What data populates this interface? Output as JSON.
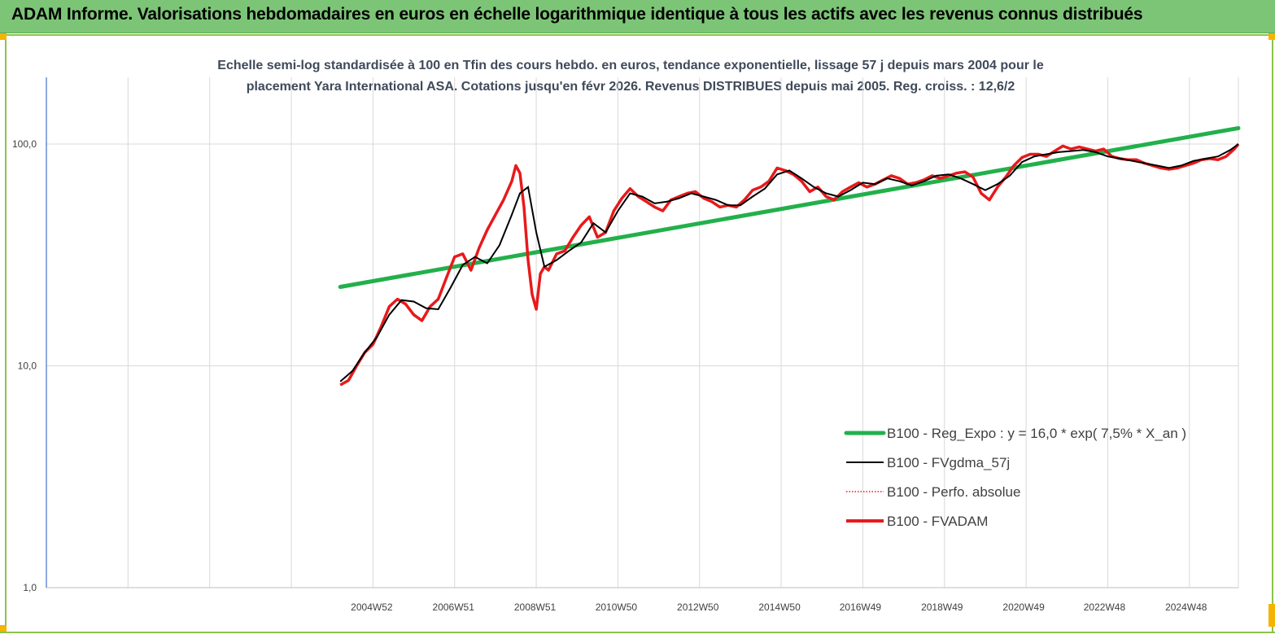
{
  "header": {
    "title": "ADAM Informe. Valorisations hebdomadaires en euros en échelle logarithmique identique à tous les actifs avec les revenus connus distribués"
  },
  "colors": {
    "header_bg": "#7cc576",
    "regression": "#22b04b",
    "fvgdma": "#000000",
    "perfo": "#e8191b",
    "fvadam": "#e8191b"
  },
  "chart_data": {
    "type": "line",
    "subtitle_line1": "Echelle semi-log standardisée à 100 en Tfin des cours hebdo. en euros, tendance exponentielle, lissage 57 j depuis mars 2004 pour le",
    "subtitle_line2": "placement Yara International ASA. Cotations jusqu'en févr 2026. Revenus DISTRIBUES depuis mai 2005. Reg. croiss. : 12,6/2",
    "y_scale": "log",
    "ylim": [
      1,
      200
    ],
    "xlim": [
      1997.0,
      2026.2
    ],
    "y_ticks": [
      {
        "value": 1,
        "label": "1,0"
      },
      {
        "value": 10,
        "label": "10,0"
      },
      {
        "value": 100,
        "label": "100,0"
      }
    ],
    "x_ticks": [
      {
        "value": 2004.97,
        "label": "2004W52"
      },
      {
        "value": 2006.97,
        "label": "2006W51"
      },
      {
        "value": 2008.97,
        "label": "2008W51"
      },
      {
        "value": 2010.96,
        "label": "2010W50"
      },
      {
        "value": 2012.96,
        "label": "2012W50"
      },
      {
        "value": 2014.96,
        "label": "2014W50"
      },
      {
        "value": 2016.94,
        "label": "2016W49"
      },
      {
        "value": 2018.94,
        "label": "2018W49"
      },
      {
        "value": 2020.94,
        "label": "2020W49"
      },
      {
        "value": 2022.92,
        "label": "2022W48"
      },
      {
        "value": 2024.92,
        "label": "2024W48"
      }
    ],
    "x_grid": [
      1997.0,
      1999.0,
      2001.0,
      2003.0,
      2005.0,
      2007.0,
      2009.0,
      2011.0,
      2013.0,
      2015.0,
      2017.0,
      2019.0,
      2021.0,
      2023.0,
      2025.0
    ],
    "grid": true,
    "legend_position": "bottom-right",
    "series": [
      {
        "name": "B100 - Reg_Expo : y = 16,0 *  exp( 7,5% *   X_an )",
        "style": "regression",
        "x": [
          2004.2,
          2026.2
        ],
        "y": [
          22.7,
          118.0
        ]
      },
      {
        "name": "B100 - FVgdma_57j",
        "style": "smooth",
        "x": [
          2004.2,
          2004.5,
          2004.8,
          2005.1,
          2005.4,
          2005.7,
          2006.0,
          2006.3,
          2006.6,
          2006.9,
          2007.2,
          2007.5,
          2007.8,
          2008.1,
          2008.4,
          2008.6,
          2008.8,
          2009.0,
          2009.2,
          2009.5,
          2009.8,
          2010.1,
          2010.4,
          2010.7,
          2011.0,
          2011.3,
          2011.6,
          2011.9,
          2012.2,
          2012.5,
          2012.8,
          2013.1,
          2013.4,
          2013.7,
          2014.0,
          2014.3,
          2014.6,
          2014.9,
          2015.2,
          2015.5,
          2015.8,
          2016.1,
          2016.4,
          2016.7,
          2017.0,
          2017.3,
          2017.6,
          2017.9,
          2018.2,
          2018.5,
          2018.8,
          2019.1,
          2019.4,
          2019.7,
          2020.0,
          2020.3,
          2020.6,
          2020.9,
          2021.2,
          2021.5,
          2021.8,
          2022.1,
          2022.4,
          2022.7,
          2023.0,
          2023.3,
          2023.6,
          2023.9,
          2024.2,
          2024.5,
          2024.8,
          2025.1,
          2025.4,
          2025.7,
          2026.0,
          2026.2
        ],
        "y": [
          8.5,
          9.5,
          11.5,
          13.5,
          17.0,
          19.8,
          19.5,
          18.2,
          18.0,
          22.5,
          28.5,
          31.0,
          29.0,
          35.0,
          48.0,
          60.0,
          64.0,
          40.0,
          28.0,
          30.0,
          33.0,
          36.0,
          44.0,
          40.0,
          50.0,
          60.0,
          58.0,
          54.0,
          55.0,
          57.0,
          60.0,
          58.0,
          56.0,
          53.0,
          53.0,
          58.0,
          63.0,
          73.0,
          76.0,
          70.0,
          64.0,
          60.0,
          58.0,
          62.0,
          67.0,
          66.0,
          70.0,
          68.0,
          65.0,
          68.0,
          72.0,
          73.0,
          70.0,
          66.0,
          62.0,
          66.0,
          72.0,
          83.0,
          88.0,
          90.0,
          92.0,
          93.0,
          94.0,
          92.0,
          88.0,
          86.0,
          84.0,
          82.0,
          80.0,
          78.0,
          80.0,
          84.0,
          86.0,
          88.0,
          94.0,
          100.0
        ]
      },
      {
        "name": "B100 - Perfo. absolue",
        "style": "dotted",
        "x": [],
        "y": []
      },
      {
        "name": "B100 - FVADAM",
        "style": "thick",
        "x": [
          2004.2,
          2004.4,
          2004.6,
          2004.8,
          2005.0,
          2005.2,
          2005.4,
          2005.6,
          2005.8,
          2006.0,
          2006.2,
          2006.4,
          2006.6,
          2006.8,
          2007.0,
          2007.2,
          2007.4,
          2007.6,
          2007.8,
          2008.0,
          2008.2,
          2008.4,
          2008.5,
          2008.6,
          2008.7,
          2008.8,
          2008.9,
          2009.0,
          2009.1,
          2009.2,
          2009.3,
          2009.5,
          2009.7,
          2009.9,
          2010.1,
          2010.3,
          2010.5,
          2010.7,
          2010.9,
          2011.1,
          2011.3,
          2011.5,
          2011.7,
          2011.9,
          2012.1,
          2012.3,
          2012.5,
          2012.7,
          2012.9,
          2013.1,
          2013.3,
          2013.5,
          2013.7,
          2013.9,
          2014.1,
          2014.3,
          2014.5,
          2014.7,
          2014.9,
          2015.1,
          2015.3,
          2015.5,
          2015.7,
          2015.9,
          2016.1,
          2016.3,
          2016.5,
          2016.7,
          2016.9,
          2017.1,
          2017.3,
          2017.5,
          2017.7,
          2017.9,
          2018.1,
          2018.3,
          2018.5,
          2018.7,
          2018.9,
          2019.1,
          2019.3,
          2019.5,
          2019.7,
          2019.9,
          2020.1,
          2020.3,
          2020.5,
          2020.7,
          2020.9,
          2021.1,
          2021.3,
          2021.5,
          2021.7,
          2021.9,
          2022.1,
          2022.3,
          2022.5,
          2022.7,
          2022.9,
          2023.1,
          2023.3,
          2023.5,
          2023.7,
          2023.9,
          2024.1,
          2024.3,
          2024.5,
          2024.7,
          2024.9,
          2025.1,
          2025.3,
          2025.5,
          2025.7,
          2025.9,
          2026.1,
          2026.2
        ],
        "y": [
          8.2,
          8.6,
          10.0,
          11.5,
          12.5,
          15.0,
          18.5,
          20.0,
          19.0,
          17.0,
          16.0,
          18.5,
          20.0,
          25.0,
          31.0,
          32.0,
          27.0,
          34.0,
          41.0,
          48.0,
          56.0,
          68.0,
          80.0,
          74.0,
          52.0,
          30.0,
          21.0,
          18.0,
          26.0,
          28.0,
          27.0,
          32.0,
          33.0,
          38.0,
          43.0,
          47.0,
          38.0,
          40.0,
          50.0,
          57.0,
          63.0,
          58.0,
          55.0,
          52.0,
          50.0,
          56.0,
          58.0,
          60.0,
          61.0,
          57.0,
          55.0,
          52.0,
          53.0,
          52.0,
          56.0,
          62.0,
          64.0,
          68.0,
          78.0,
          76.0,
          73.0,
          68.0,
          61.0,
          64.0,
          58.0,
          56.0,
          61.0,
          64.0,
          67.0,
          64.0,
          66.0,
          69.0,
          72.0,
          70.0,
          66.0,
          67.0,
          69.0,
          72.0,
          70.0,
          72.0,
          74.0,
          75.0,
          71.0,
          60.0,
          56.0,
          64.0,
          71.0,
          80.0,
          87.0,
          90.0,
          90.0,
          88.0,
          93.0,
          98.0,
          95.0,
          97.0,
          95.0,
          93.0,
          95.0,
          88.0,
          86.0,
          85.0,
          85.0,
          82.0,
          80.0,
          78.0,
          77.0,
          78.0,
          80.0,
          82.0,
          85.0,
          86.0,
          85.0,
          88.0,
          95.0,
          100.0
        ]
      }
    ]
  }
}
